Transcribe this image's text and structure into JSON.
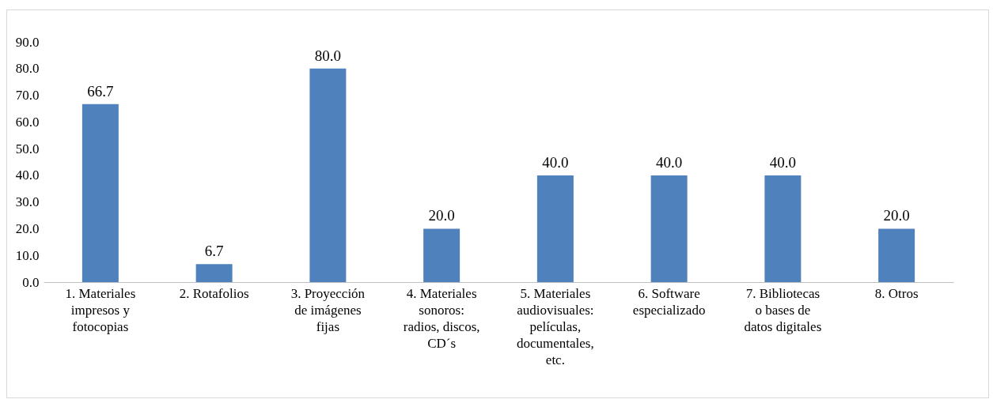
{
  "chart_data": {
    "type": "bar",
    "categories": [
      "1. Materiales impresos y fotocopias",
      "2. Rotafolios",
      "3. Proyección de imágenes fijas",
      "4. Materiales sonoros: radios, discos, CD´s",
      "5. Materiales audiovisuales: películas, documentales, etc.",
      "6. Software especializado",
      "7. Bibliotecas o bases de datos digitales",
      "8. Otros"
    ],
    "values": [
      66.7,
      6.7,
      80.0,
      20.0,
      40.0,
      40.0,
      40.0,
      20.0
    ],
    "value_labels": [
      "66.7",
      "6.7",
      "80.0",
      "20.0",
      "40.0",
      "40.0",
      "40.0",
      "20.0"
    ],
    "color": "#4f81bd",
    "ylim": [
      0,
      90
    ],
    "yticks": [
      {
        "value": 0,
        "label": "0.0"
      },
      {
        "value": 10,
        "label": "10.0"
      },
      {
        "value": 20,
        "label": "20.0"
      },
      {
        "value": 30,
        "label": "30.0"
      },
      {
        "value": 40,
        "label": "40.0"
      },
      {
        "value": 50,
        "label": "50.0"
      },
      {
        "value": 60,
        "label": "60.0"
      },
      {
        "value": 70,
        "label": "70.0"
      },
      {
        "value": 80,
        "label": "80.0"
      },
      {
        "value": 90,
        "label": "90.0"
      }
    ],
    "grid": false
  }
}
